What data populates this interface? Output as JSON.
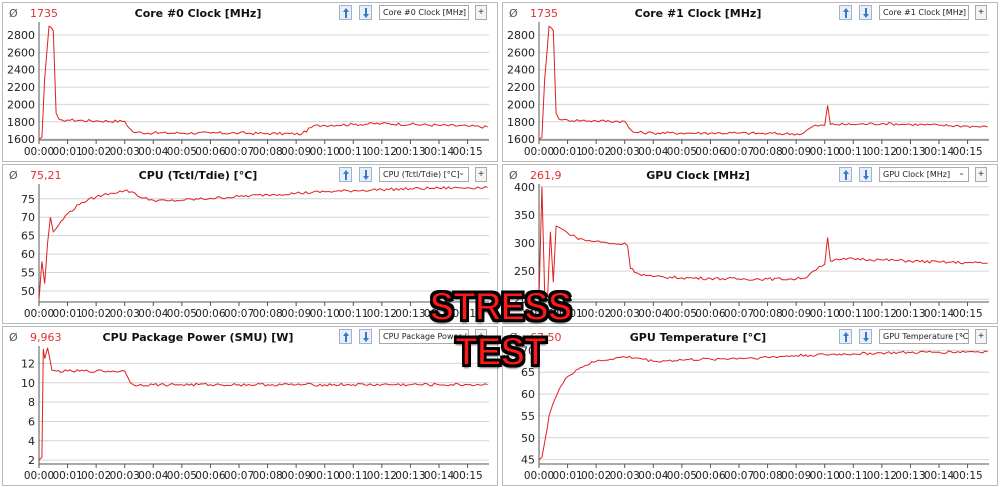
{
  "colors": {
    "line": "#e02020",
    "grid": "#d4d4d4",
    "text": "#111111",
    "accent": "#e03030"
  },
  "overlay_text": "STRESS TEST",
  "avg_symbol": "Ø",
  "time_ticks": [
    "00:00",
    "00:01",
    "00:02",
    "00:03",
    "00:04",
    "00:05",
    "00:06",
    "00:07",
    "00:08",
    "00:09",
    "00:10",
    "00:11",
    "00:12",
    "00:13",
    "00:14",
    "00:15"
  ],
  "panels": [
    {
      "id": "core0",
      "title": "Core #0 Clock [MHz]",
      "avg": "1735",
      "select": "Core #0 Clock [MHz]",
      "plus": "+",
      "icon_up": "pin-up-icon",
      "icon_down": "pin-down-icon"
    },
    {
      "id": "core1",
      "title": "Core #1 Clock [MHz]",
      "avg": "1735",
      "select": "Core #1 Clock [MHz]",
      "plus": "+",
      "icon_up": "pin-up-icon",
      "icon_down": "pin-down-icon"
    },
    {
      "id": "cputemp",
      "title": "CPU (Tctl/Tdie) [°C]",
      "avg": "75,21",
      "select": "CPU (Tctl/Tdie) [°C]",
      "plus": "+",
      "icon_up": "pin-up-icon",
      "icon_down": "pin-down-icon"
    },
    {
      "id": "gpuclock",
      "title": "GPU Clock [MHz]",
      "avg": "261,9",
      "select": "GPU Clock [MHz]",
      "plus": "+",
      "icon_up": "pin-up-icon",
      "icon_down": "pin-down-icon"
    },
    {
      "id": "cpupower",
      "title": "CPU Package Power (SMU) [W]",
      "avg": "9,963",
      "select": "CPU Package Power (SMU)",
      "plus": "+",
      "icon_up": "pin-up-icon",
      "icon_down": "pin-down-icon"
    },
    {
      "id": "gputemp",
      "title": "GPU Temperature [°C]",
      "avg": "67,50",
      "select": "GPU Temperature [°C]",
      "plus": "+",
      "icon_up": "pin-up-icon",
      "icon_down": "pin-down-icon"
    }
  ],
  "chart_data": [
    {
      "type": "line",
      "title": "Core #0 Clock [MHz]",
      "xlabel": "",
      "ylabel": "",
      "xlim": [
        0,
        15.75
      ],
      "ylim": [
        1590,
        2950
      ],
      "yticks": [
        1600,
        1800,
        2000,
        2200,
        2400,
        2600,
        2800
      ],
      "grid": true,
      "series": [
        {
          "x": [
            0,
            0.1,
            0.2,
            0.35,
            0.5,
            0.6,
            0.7,
            0.8,
            1.0,
            2.0,
            3.0,
            3.15,
            3.3,
            4,
            5,
            6,
            7,
            8,
            9.2,
            9.6,
            10,
            11,
            12,
            13,
            14,
            15,
            15.7
          ],
          "y": [
            1600,
            1620,
            2300,
            2900,
            2850,
            1900,
            1830,
            1820,
            1820,
            1810,
            1805,
            1730,
            1680,
            1670,
            1670,
            1670,
            1670,
            1665,
            1660,
            1750,
            1760,
            1770,
            1780,
            1770,
            1760,
            1750,
            1740
          ]
        }
      ]
    },
    {
      "type": "line",
      "title": "Core #1 Clock [MHz]",
      "xlabel": "",
      "ylabel": "",
      "xlim": [
        0,
        15.75
      ],
      "ylim": [
        1590,
        2950
      ],
      "yticks": [
        1600,
        1800,
        2000,
        2200,
        2400,
        2600,
        2800
      ],
      "grid": true,
      "series": [
        {
          "x": [
            0,
            0.1,
            0.2,
            0.35,
            0.5,
            0.6,
            0.7,
            0.8,
            1.0,
            2.0,
            3.0,
            3.15,
            3.3,
            4,
            5,
            6,
            7,
            8,
            9.2,
            9.6,
            10,
            10.1,
            10.2,
            11,
            12,
            13,
            14,
            15,
            15.7
          ],
          "y": [
            1600,
            1620,
            2300,
            2900,
            2850,
            1900,
            1830,
            1820,
            1820,
            1810,
            1805,
            1730,
            1680,
            1670,
            1670,
            1670,
            1670,
            1665,
            1660,
            1750,
            1760,
            1990,
            1770,
            1770,
            1780,
            1770,
            1760,
            1750,
            1740
          ]
        }
      ]
    },
    {
      "type": "line",
      "title": "CPU (Tctl/Tdie) [°C]",
      "xlabel": "",
      "ylabel": "",
      "xlim": [
        0,
        15.75
      ],
      "ylim": [
        47,
        79
      ],
      "yticks": [
        50,
        55,
        60,
        65,
        70,
        75
      ],
      "grid": true,
      "series": [
        {
          "x": [
            0,
            0.1,
            0.2,
            0.3,
            0.4,
            0.5,
            0.7,
            1.0,
            1.5,
            2.0,
            2.5,
            3.0,
            3.3,
            3.6,
            4.0,
            4.5,
            5.0,
            6,
            7,
            8,
            9,
            10,
            11,
            12,
            13,
            14,
            15,
            15.7
          ],
          "y": [
            47.5,
            58,
            52,
            63,
            70,
            66,
            68,
            71,
            74,
            75.5,
            76.5,
            77.2,
            76.8,
            75.2,
            74.6,
            74.4,
            74.6,
            75.1,
            75.6,
            76.1,
            76.5,
            76.9,
            77.2,
            77.5,
            77.7,
            77.9,
            78.0,
            78.1
          ]
        }
      ]
    },
    {
      "type": "line",
      "title": "GPU Clock [MHz]",
      "xlabel": "",
      "ylabel": "",
      "xlim": [
        0,
        15.75
      ],
      "ylim": [
        195,
        405
      ],
      "yticks": [
        200,
        250,
        300,
        350,
        400
      ],
      "grid": true,
      "series": [
        {
          "x": [
            0,
            0.1,
            0.2,
            0.3,
            0.4,
            0.5,
            0.6,
            0.8,
            1.0,
            1.3,
            1.6,
            2.0,
            2.4,
            2.8,
            3.0,
            3.1,
            3.2,
            3.5,
            4,
            5,
            6,
            7,
            8,
            9,
            9.4,
            9.6,
            9.8,
            10.0,
            10.1,
            10.2,
            10.5,
            11,
            12,
            13,
            14,
            15,
            15.7
          ],
          "y": [
            200,
            400,
            210,
            205,
            320,
            230,
            330,
            325,
            318,
            310,
            305,
            303,
            300,
            298,
            300,
            295,
            255,
            245,
            240,
            238,
            237,
            236,
            236,
            236,
            240,
            250,
            258,
            262,
            310,
            268,
            270,
            272,
            270,
            268,
            266,
            265,
            264
          ]
        }
      ]
    },
    {
      "type": "line",
      "title": "CPU Package Power (SMU) [W]",
      "xlabel": "",
      "ylabel": "",
      "xlim": [
        0,
        15.75
      ],
      "ylim": [
        1.6,
        13.8
      ],
      "yticks": [
        2,
        4,
        6,
        8,
        10,
        12
      ],
      "grid": true,
      "series": [
        {
          "x": [
            0,
            0.1,
            0.15,
            0.2,
            0.3,
            0.45,
            0.6,
            1.0,
            2.0,
            3.0,
            3.2,
            3.3,
            4,
            5,
            6,
            7,
            8,
            9,
            10,
            11,
            12,
            13,
            14,
            15,
            15.7
          ],
          "y": [
            2.0,
            2.3,
            13.5,
            12.5,
            13.6,
            11.3,
            11.2,
            11.2,
            11.2,
            11.2,
            10.0,
            9.8,
            9.8,
            9.8,
            9.8,
            9.8,
            9.8,
            9.8,
            9.8,
            9.8,
            9.8,
            9.8,
            9.8,
            9.8,
            9.8
          ]
        }
      ]
    },
    {
      "type": "line",
      "title": "GPU Temperature [°C]",
      "xlabel": "",
      "ylabel": "",
      "xlim": [
        0,
        15.75
      ],
      "ylim": [
        44,
        71
      ],
      "yticks": [
        45,
        50,
        55,
        60,
        65,
        70
      ],
      "grid": true,
      "series": [
        {
          "x": [
            0,
            0.1,
            0.2,
            0.35,
            0.5,
            0.7,
            1.0,
            1.3,
            1.6,
            2.0,
            2.5,
            3.0,
            3.5,
            4,
            5,
            6,
            7,
            8,
            9,
            10,
            11,
            12,
            13,
            14,
            15,
            15.7
          ],
          "y": [
            45,
            45.5,
            49,
            55,
            58,
            61,
            64,
            65.5,
            66.5,
            67.5,
            68,
            68.5,
            68.2,
            67.5,
            67.8,
            68,
            68.2,
            68.4,
            68.8,
            69.0,
            69.2,
            69.4,
            69.5,
            69.6,
            69.7,
            69.7
          ]
        }
      ]
    }
  ]
}
